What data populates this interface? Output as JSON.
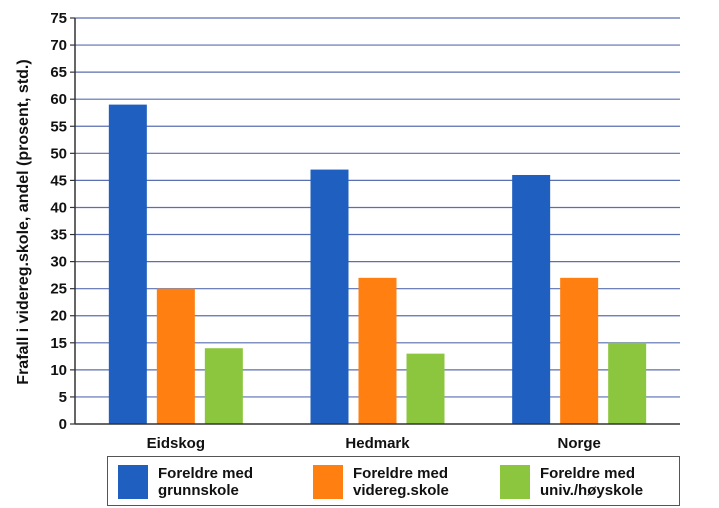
{
  "chart_data": {
    "type": "bar",
    "title": "",
    "xlabel": "",
    "ylabel": "Frafall i videreg.skole, andel (prosent, std.)",
    "ylim": [
      0,
      75
    ],
    "ytick_step": 5,
    "yticks": [
      "0",
      "5",
      "10",
      "15",
      "20",
      "25",
      "30",
      "35",
      "40",
      "45",
      "50",
      "55",
      "60",
      "65",
      "70",
      "75"
    ],
    "categories": [
      "Eidskog",
      "Hedmark",
      "Norge"
    ],
    "series": [
      {
        "name": "Foreldre med grunnskole",
        "label_lines": [
          "Foreldre med",
          "grunnskole"
        ],
        "color": "#1f5fbf",
        "values": [
          59,
          47,
          46
        ]
      },
      {
        "name": "Foreldre med videreg.skole",
        "label_lines": [
          "Foreldre med",
          "videreg.skole"
        ],
        "color": "#ff7f10",
        "values": [
          25,
          27,
          27
        ]
      },
      {
        "name": "Foreldre med univ./høyskole",
        "label_lines": [
          "Foreldre med",
          "univ./høyskole"
        ],
        "color": "#8cc63f",
        "values": [
          14,
          13,
          15
        ]
      }
    ],
    "grid": true,
    "legend_position": "bottom"
  }
}
